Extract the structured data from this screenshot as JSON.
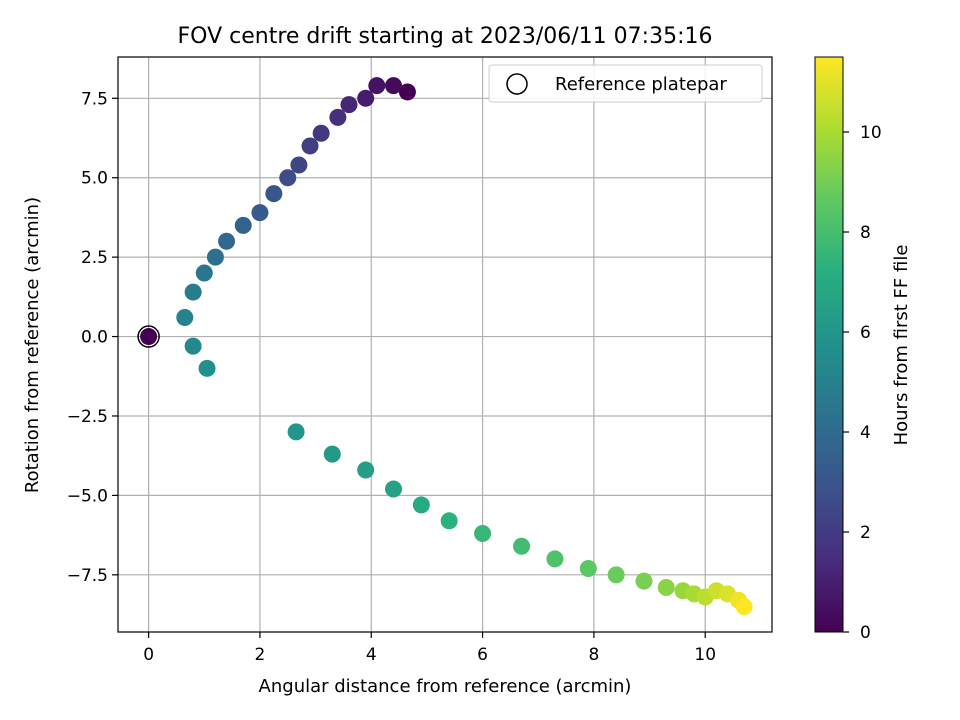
{
  "chart_data": {
    "type": "scatter",
    "title": "FOV centre drift starting at 2023/06/11 07:35:16",
    "xlabel": "Angular distance from reference (arcmin)",
    "ylabel": "Rotation from reference (arcmin)",
    "xlim": [
      -0.55,
      11.2
    ],
    "ylim": [
      -9.3,
      8.8
    ],
    "xticks": [
      0,
      2,
      4,
      6,
      8,
      10
    ],
    "xtick_labels": [
      "0",
      "2",
      "4",
      "6",
      "8",
      "10"
    ],
    "yticks": [
      7.5,
      5.0,
      2.5,
      0.0,
      -2.5,
      -5.0,
      -7.5
    ],
    "ytick_labels": [
      "7.5",
      "5.0",
      "2.5",
      "0.0",
      "−2.5",
      "−5.0",
      "−7.5"
    ],
    "grid": true,
    "legend": {
      "position": "upper right",
      "entries": [
        "Reference platepar"
      ]
    },
    "colorbar": {
      "label": "Hours from first FF file",
      "colormap": "viridis",
      "range": [
        0,
        11.5
      ],
      "ticks": [
        0,
        2,
        4,
        6,
        8,
        10
      ],
      "tick_labels": [
        "0",
        "2",
        "4",
        "6",
        "8",
        "10"
      ]
    },
    "reference_point": {
      "x": 0,
      "y": 0,
      "hours": 0
    },
    "series": [
      {
        "hours_from_first_ff": [
          0.0,
          0.3,
          0.6,
          0.9,
          1.2,
          1.5,
          1.8,
          2.1,
          2.4,
          2.7,
          3.0,
          3.3,
          3.6,
          3.9,
          4.2,
          4.5,
          4.8,
          5.1,
          5.4,
          5.7,
          6.0,
          6.2,
          6.4,
          6.6,
          7.0,
          7.3,
          7.6,
          7.9,
          8.2,
          8.5,
          8.8,
          9.1,
          9.4,
          9.7,
          10.0,
          10.3,
          10.6,
          10.9,
          11.2,
          11.5
        ],
        "x": [
          4.65,
          4.4,
          4.1,
          3.9,
          3.6,
          3.4,
          3.1,
          2.9,
          2.7,
          2.5,
          2.25,
          2.0,
          1.7,
          1.4,
          1.2,
          1.0,
          0.8,
          0.65,
          0.8,
          1.05,
          2.65,
          3.3,
          3.9,
          4.4,
          4.9,
          5.4,
          6.0,
          6.7,
          7.3,
          7.9,
          8.4,
          8.9,
          9.3,
          9.6,
          9.8,
          10.0,
          10.2,
          10.4,
          10.6,
          10.7
        ],
        "y": [
          7.7,
          7.9,
          7.9,
          7.5,
          7.3,
          6.9,
          6.4,
          6.0,
          5.4,
          5.0,
          4.5,
          3.9,
          3.5,
          3.0,
          2.5,
          2.0,
          1.4,
          0.6,
          -0.3,
          -1.0,
          -3.0,
          -3.7,
          -4.2,
          -4.8,
          -5.3,
          -5.8,
          -6.2,
          -6.6,
          -7.0,
          -7.3,
          -7.5,
          -7.7,
          -7.9,
          -8.0,
          -8.1,
          -8.2,
          -8.0,
          -8.1,
          -8.3,
          -8.5
        ]
      }
    ]
  }
}
